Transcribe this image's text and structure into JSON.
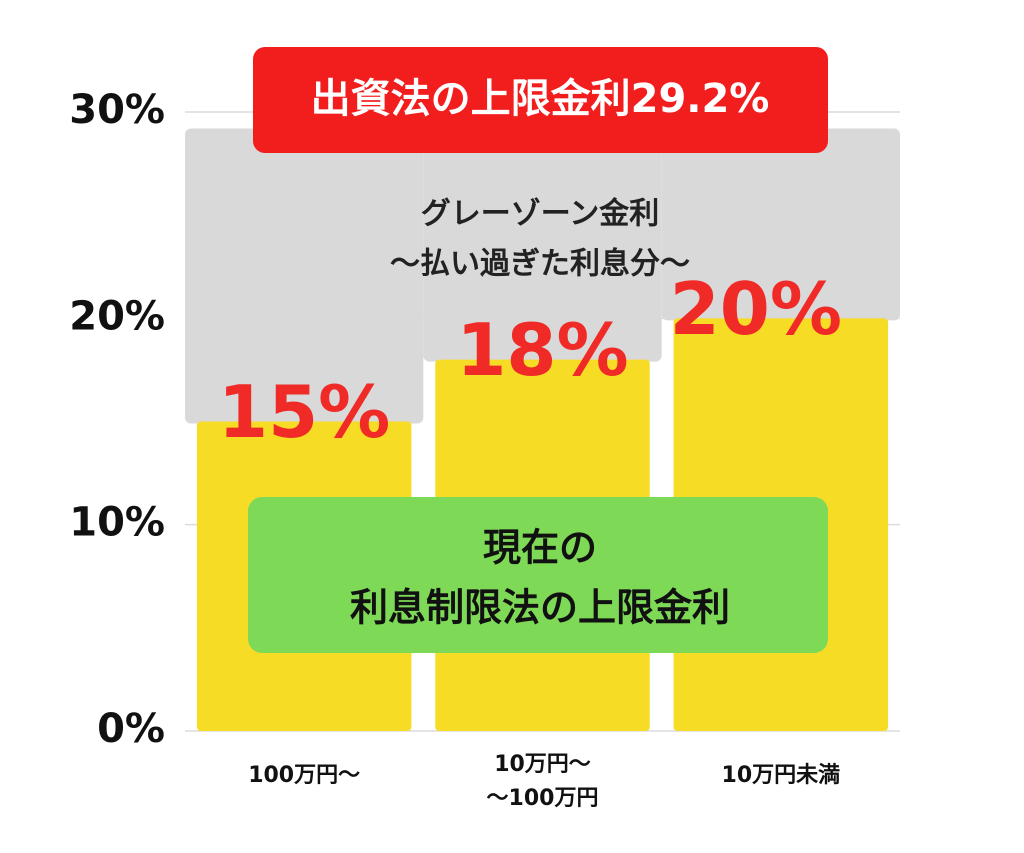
{
  "chart_data": {
    "type": "bar",
    "categories": [
      "100万円〜",
      "10万円〜\n〜100万円",
      "10万円未満"
    ],
    "values": [
      15,
      18,
      20
    ],
    "value_labels": [
      "15%",
      "18%",
      "20%"
    ],
    "color": "#f7dc26",
    "value_label_color": "#f02a26",
    "ylim": [
      0,
      30
    ],
    "yticks": [
      {
        "value": 0,
        "label": "0%"
      },
      {
        "value": 10,
        "label": "10%"
      },
      {
        "value": 20,
        "label": "20%"
      },
      {
        "value": 30,
        "label": "30%"
      }
    ],
    "grid": true,
    "cap": 29.2,
    "cap_label": "出資法の上限金利29.2%",
    "cap_color": "#f21d1d",
    "gray_zone_color": "#d9d9d9",
    "gray_zone_label": [
      "グレーゾーン金利",
      "〜払い過ぎた利息分〜"
    ],
    "current_limit_label": [
      "現在の",
      "利息制限法の上限金利"
    ],
    "current_limit_color": "#7ed957"
  }
}
